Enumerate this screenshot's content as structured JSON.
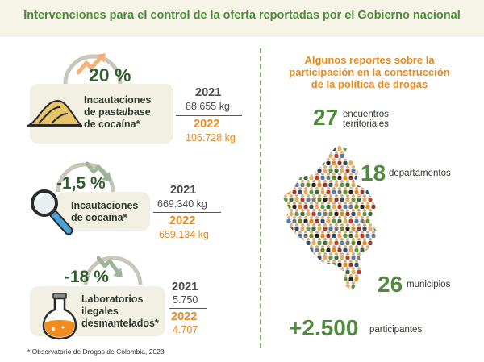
{
  "header": {
    "title": "Intervenciones para el control de la oferta reportadas por el Gobierno nacional"
  },
  "stats": [
    {
      "percent": "20 %",
      "label_lines": [
        "Incautaciones",
        "de pasta/base",
        "de cocaína*"
      ],
      "year_old": "2021",
      "value_old": "88.655 kg",
      "year_new": "2022",
      "value_new": "106.728 kg",
      "trend": "up",
      "icon": "cocaine-paste-pile-icon"
    },
    {
      "percent": "-1,5 %",
      "label_lines": [
        "Incautaciones",
        "de cocaína*"
      ],
      "year_old": "2021",
      "value_old": "669.340 kg",
      "year_new": "2022",
      "value_new": "659.134 kg",
      "trend": "down",
      "icon": "magnifying-glass-icon"
    },
    {
      "percent": "-18 %",
      "label_lines": [
        "Laboratorios",
        "ilegales",
        "desmantelados*"
      ],
      "year_old": "2021",
      "value_old": "5.750",
      "year_new": "2022",
      "value_new": "4.707",
      "trend": "down",
      "icon": "lab-flask-icon"
    }
  ],
  "reports": {
    "title_lines": [
      "Algunos reportes sobre la",
      "participación en la construcción",
      "de la política de drogas"
    ],
    "items": [
      {
        "number": "27",
        "label_lines": [
          "encuentros",
          "territoriales"
        ]
      },
      {
        "number": "18",
        "label_lines": [
          "departamentos"
        ]
      },
      {
        "number": "26",
        "label_lines": [
          "municipios"
        ]
      },
      {
        "number": "+2.500",
        "label_lines": [
          "participantes"
        ]
      }
    ],
    "map_icon": "colombia-people-map-icon"
  },
  "footnote": "* Observatorio de Drogas de Colombia, 2023",
  "colors": {
    "green": "#4f8a3d",
    "dark_green": "#2f5d2c",
    "orange": "#e8891e",
    "card": "#f2efe3",
    "header_bg": "#f6f3e7"
  }
}
